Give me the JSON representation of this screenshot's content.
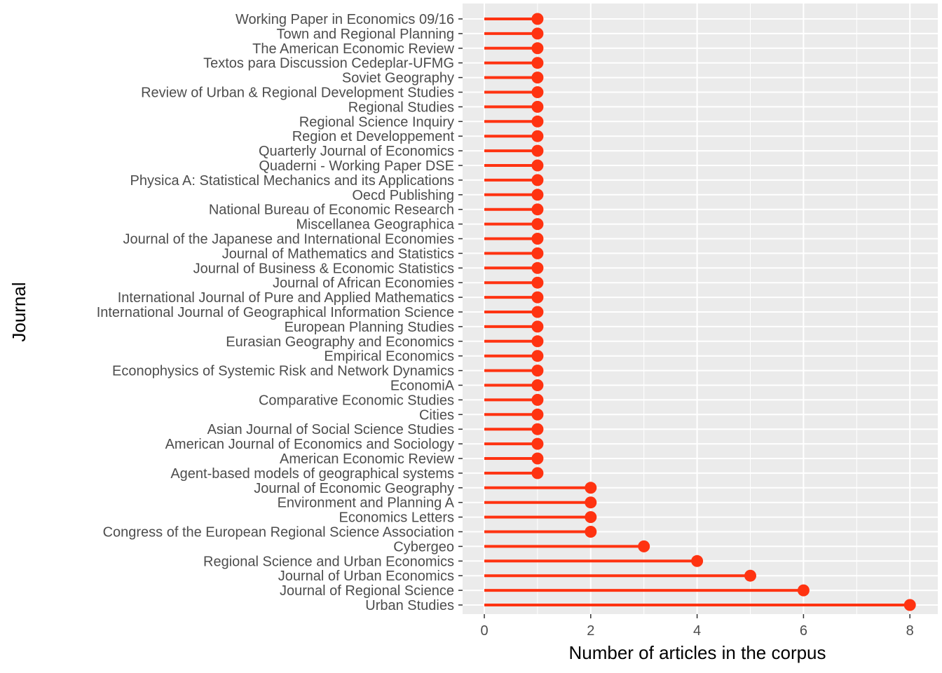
{
  "chart_data": {
    "type": "lollipop",
    "xlabel": "Number of articles in the corpus",
    "ylabel": "Journal",
    "xlim": [
      -0.4,
      8.4
    ],
    "x_ticks": [
      0,
      2,
      4,
      6,
      8
    ],
    "grid": true,
    "colors": {
      "panel": "#ebebeb",
      "grid": "#ffffff",
      "mark": "#ff3311"
    },
    "categories": [
      "Working Paper in Economics 09/16 ",
      "Town and Regional Planning",
      "The American Economic Review",
      "Textos para Discussion Cedeplar-UFMG",
      "Soviet Geography",
      "Review of Urban & Regional Development Studies",
      "Regional Studies",
      "Regional Science Inquiry",
      "Region et Developpement ",
      "Quarterly Journal of Economics",
      "Quaderni - Working Paper DSE ",
      "Physica A: Statistical Mechanics and its Applications",
      "Oecd Publishing",
      "National Bureau of Economic Research",
      "Miscellanea Geographica",
      "Journal of the Japanese and International Economies",
      "Journal of Mathematics and Statistics ",
      "Journal of Business & Economic Statistics",
      "Journal of African Economies",
      "International Journal of Pure and Applied Mathematics ",
      "International Journal of Geographical Information Science",
      "European Planning Studies",
      "Eurasian Geography and Economics",
      "Empirical Economics",
      "Econophysics of Systemic Risk and Network Dynamics",
      "EconomiA",
      "Comparative Economic Studies",
      "Cities",
      "Asian Journal of Social Science Studies ",
      "American Journal of Economics and Sociology",
      "American Economic Review ",
      "Agent-based models of geographical systems",
      "Journal of Economic Geography",
      "Environment and Planning A",
      "Economics Letters",
      "Congress of the European Regional Science Association",
      "Cybergeo",
      "Regional Science and Urban Economics",
      "Journal of Urban Economics",
      "Journal of Regional Science",
      "Urban Studies"
    ],
    "values": [
      1,
      1,
      1,
      1,
      1,
      1,
      1,
      1,
      1,
      1,
      1,
      1,
      1,
      1,
      1,
      1,
      1,
      1,
      1,
      1,
      1,
      1,
      1,
      1,
      1,
      1,
      1,
      1,
      1,
      1,
      1,
      1,
      2,
      2,
      2,
      2,
      3,
      4,
      5,
      6,
      8
    ]
  }
}
